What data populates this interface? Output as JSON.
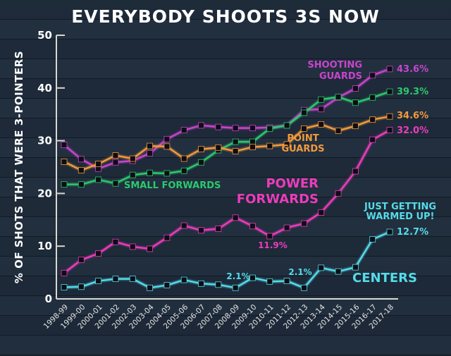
{
  "chart_data": {
    "type": "line",
    "title": "EVERYBODY SHOOTS 3S NOW",
    "xlabel": "",
    "ylabel": "% OF SHOTS THAT WERE 3-POINTERS",
    "ylim": [
      0,
      50
    ],
    "yticks": [
      "0",
      "10",
      "20",
      "30",
      "40",
      "50"
    ],
    "grid": false,
    "categories": [
      "1998-99",
      "1999-00",
      "2000-01",
      "2001-02",
      "2002-03",
      "2003-04",
      "2004-05",
      "2005-06",
      "2006-07",
      "2007-08",
      "2008-09",
      "2009-10",
      "2010-11",
      "2011-12",
      "2012-13",
      "2013-14",
      "2014-15",
      "2015-16",
      "2016-17",
      "2017-18"
    ],
    "series": [
      {
        "name": "SHOOTING GUARDS",
        "label_lines": [
          "SHOOTING",
          "GUARDS"
        ],
        "color": "#c844cc",
        "values": [
          29.2,
          26.5,
          24.7,
          25.9,
          26.2,
          27.6,
          30.3,
          32.0,
          32.9,
          32.6,
          32.4,
          32.4,
          32.5,
          32.9,
          35.8,
          36.0,
          38.2,
          39.9,
          42.4,
          43.6
        ]
      },
      {
        "name": "SMALL FORWARDS",
        "label_lines": [
          "SMALL FORWARDS"
        ],
        "color": "#2cc86e",
        "values": [
          21.7,
          21.7,
          22.6,
          21.9,
          23.5,
          23.9,
          23.8,
          24.3,
          25.9,
          28.2,
          29.8,
          29.8,
          32.3,
          32.9,
          35.3,
          37.8,
          38.3,
          37.2,
          38.2,
          39.3
        ]
      },
      {
        "name": "POINT GUARDS",
        "label_lines": [
          "POINT",
          "GUARDS"
        ],
        "color": "#f29a3c",
        "values": [
          26.0,
          24.4,
          25.6,
          27.2,
          26.6,
          29.0,
          28.9,
          26.6,
          28.4,
          28.7,
          28.0,
          28.8,
          29.0,
          29.3,
          32.3,
          33.1,
          31.9,
          32.8,
          34.0,
          34.6
        ]
      },
      {
        "name": "POWER FORWARDS",
        "label_lines": [
          "POWER",
          "FORWARDS"
        ],
        "color": "#ec3cbc",
        "values": [
          4.9,
          7.4,
          8.6,
          10.8,
          9.9,
          9.5,
          11.6,
          13.9,
          13.0,
          13.3,
          15.4,
          13.8,
          11.9,
          13.5,
          14.3,
          16.4,
          20.0,
          24.2,
          30.2,
          32.0
        ]
      },
      {
        "name": "CENTERS",
        "label_lines": [
          "CENTERS"
        ],
        "color": "#55dbea",
        "values": [
          2.2,
          2.3,
          3.4,
          3.8,
          3.8,
          2.1,
          2.6,
          3.6,
          2.9,
          2.7,
          2.1,
          4.0,
          3.3,
          3.4,
          2.1,
          5.9,
          5.2,
          6.0,
          11.3,
          12.7
        ]
      }
    ],
    "data_labels": {
      "sg_end": "43.6%",
      "sf_end": "39.3%",
      "pg_end": "34.6%",
      "pf_end": "32.0%",
      "c_end": "12.7%",
      "pf_min": "11.9%",
      "c_2009": "2.1%",
      "c_2013": "2.1%"
    },
    "annotation": [
      "JUST GETTING",
      "WARMED UP!"
    ]
  }
}
